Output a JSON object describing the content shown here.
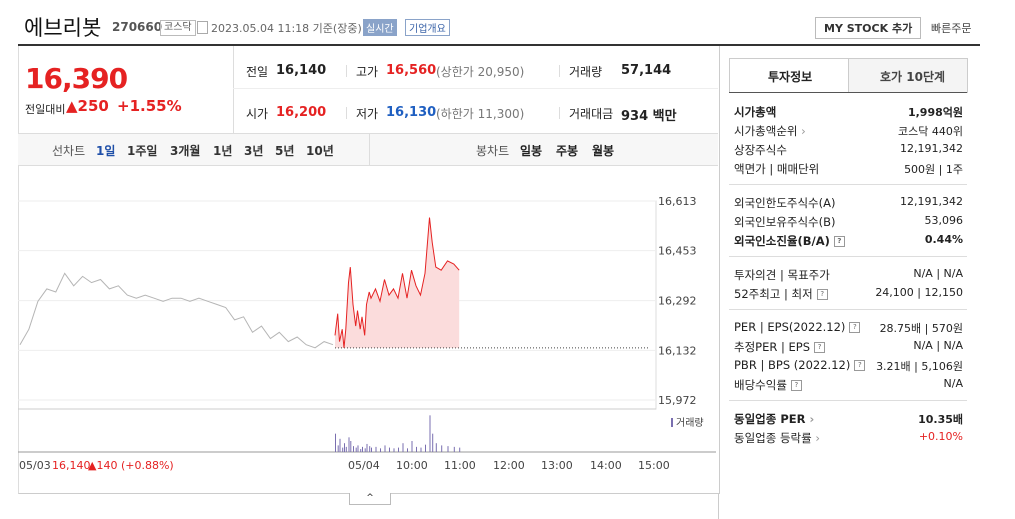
{
  "header": {
    "name": "에브리봇",
    "code": "270660",
    "market": "코스닥",
    "datetime": "2023.05.04 11:18 기준(장중)",
    "realtime": "실시간",
    "company_info": "기업개요",
    "my_stock": "MY STOCK 추가",
    "quick_order": "빠른주문"
  },
  "quote": {
    "price": "16,390",
    "change_label": "전일대비",
    "change": "▲250",
    "rate": "+1.55%"
  },
  "summary": [
    [
      {
        "label": "전일",
        "value": "16,140"
      },
      {
        "label": "고가",
        "value": "16,560",
        "note": "(상한가 20,950)",
        "color": "#e52222"
      },
      {
        "label": "거래량",
        "value": "57,144"
      }
    ],
    [
      {
        "label": "시가",
        "value": "16,200",
        "color": "#e52222"
      },
      {
        "label": "저가",
        "value": "16,130",
        "note": "(하한가 11,300)",
        "color": "#1f5fc1"
      },
      {
        "label": "거래대금",
        "value": "934 백만"
      }
    ]
  ],
  "period_tabs": {
    "line_label": "선차트",
    "line": [
      "1일",
      "1주일",
      "3개월",
      "1년",
      "3년",
      "5년",
      "10년"
    ],
    "selected": 0,
    "candle_label": "봉차트",
    "candle": [
      "일봉",
      "주봉",
      "월봉"
    ]
  },
  "chart": {
    "yticks": [
      {
        "value": 16613,
        "label": "16,613"
      },
      {
        "value": 16453,
        "label": "16,453"
      },
      {
        "value": 16292,
        "label": "16,292"
      },
      {
        "value": 16132,
        "label": "16,132"
      },
      {
        "value": 15972,
        "label": "15,972"
      }
    ],
    "ylim": [
      15972,
      16613
    ],
    "xticks": [
      "05/04",
      "10:00",
      "11:00",
      "12:00",
      "13:00",
      "14:00",
      "15:00"
    ],
    "baseline": 16140,
    "prev_day": {
      "color": "#b5b5b5",
      "values": [
        16150,
        16200,
        16290,
        16330,
        16320,
        16380,
        16340,
        16370,
        16350,
        16360,
        16330,
        16340,
        16310,
        16300,
        16310,
        16300,
        16290,
        16300,
        16300,
        16290,
        16300,
        16290,
        16280,
        16270,
        16230,
        16240,
        16190,
        16210,
        16170,
        16190,
        16160,
        16175,
        16150,
        16140,
        16160,
        16150
      ]
    },
    "today": {
      "color": "#e52222",
      "fill": "#fbdcdc",
      "x": [
        0,
        3,
        5,
        8,
        10,
        12,
        15,
        17,
        20,
        23,
        25,
        28,
        30,
        33,
        35,
        38,
        40,
        45,
        50,
        55,
        60,
        65,
        70,
        75,
        80,
        85,
        90,
        95,
        100,
        105,
        108,
        112,
        118,
        125,
        132,
        138
      ],
      "values": [
        16180,
        16250,
        16160,
        16200,
        16140,
        16200,
        16350,
        16400,
        16280,
        16210,
        16260,
        16200,
        16240,
        16180,
        16280,
        16320,
        16300,
        16330,
        16290,
        16360,
        16310,
        16330,
        16300,
        16380,
        16300,
        16390,
        16340,
        16310,
        16380,
        16560,
        16480,
        16400,
        16390,
        16420,
        16410,
        16390
      ]
    },
    "volume": {
      "label": "거래량",
      "color": "#7a6fb0",
      "ylim": [
        0,
        6000
      ],
      "values": [
        2500,
        900,
        1800,
        600,
        1200,
        700,
        2000,
        1500,
        800,
        600,
        900,
        400,
        700,
        500,
        1100,
        800,
        600,
        700,
        500,
        900,
        600,
        500,
        600,
        1200,
        500,
        1500,
        700,
        600,
        1000,
        5000,
        2500,
        1200,
        900,
        800,
        700,
        600
      ]
    },
    "footnote": {
      "date": "05/03",
      "price": "16,140",
      "change": "▲140 (+0.88%)"
    }
  },
  "side": {
    "tabs": [
      "투자정보",
      "호가 10단계"
    ],
    "groups": [
      [
        {
          "label": "시가총액",
          "value": "1,998억원",
          "bold": true
        },
        {
          "label": "시가총액순위",
          "value": "코스닥 440위",
          "arrow": true
        },
        {
          "label": "상장주식수",
          "value": "12,191,342"
        },
        {
          "label": "액면가 | 매매단위",
          "value": "500원 | 1주"
        }
      ],
      [
        {
          "label": "외국인한도주식수(A)",
          "value": "12,191,342"
        },
        {
          "label": "외국인보유주식수(B)",
          "value": "53,096"
        },
        {
          "label": "외국인소진율(B/A)",
          "value": "0.44%",
          "bold": true,
          "help": true
        }
      ],
      [
        {
          "label": "투자의견 | 목표주가",
          "value": "N/A | N/A"
        },
        {
          "label": "52주최고 | 최저",
          "value": "24,100 | 12,150",
          "help": true
        }
      ],
      [
        {
          "label": "PER | EPS(2022.12)",
          "value": "28.75배 | 570원",
          "help": true
        },
        {
          "label": "추정PER | EPS",
          "value": "N/A | N/A",
          "help": true
        },
        {
          "label": "PBR | BPS (2022.12)",
          "value": "3.21배 | 5,106원",
          "help": true
        },
        {
          "label": "배당수익률",
          "value": "N/A",
          "help": true
        }
      ],
      [
        {
          "label": "동일업종 PER",
          "value": "10.35배",
          "bold": true,
          "arrow": true
        },
        {
          "label": "동일업종 등락률",
          "value": "+0.10%",
          "color": "#e52222",
          "arrow": true
        }
      ]
    ]
  }
}
